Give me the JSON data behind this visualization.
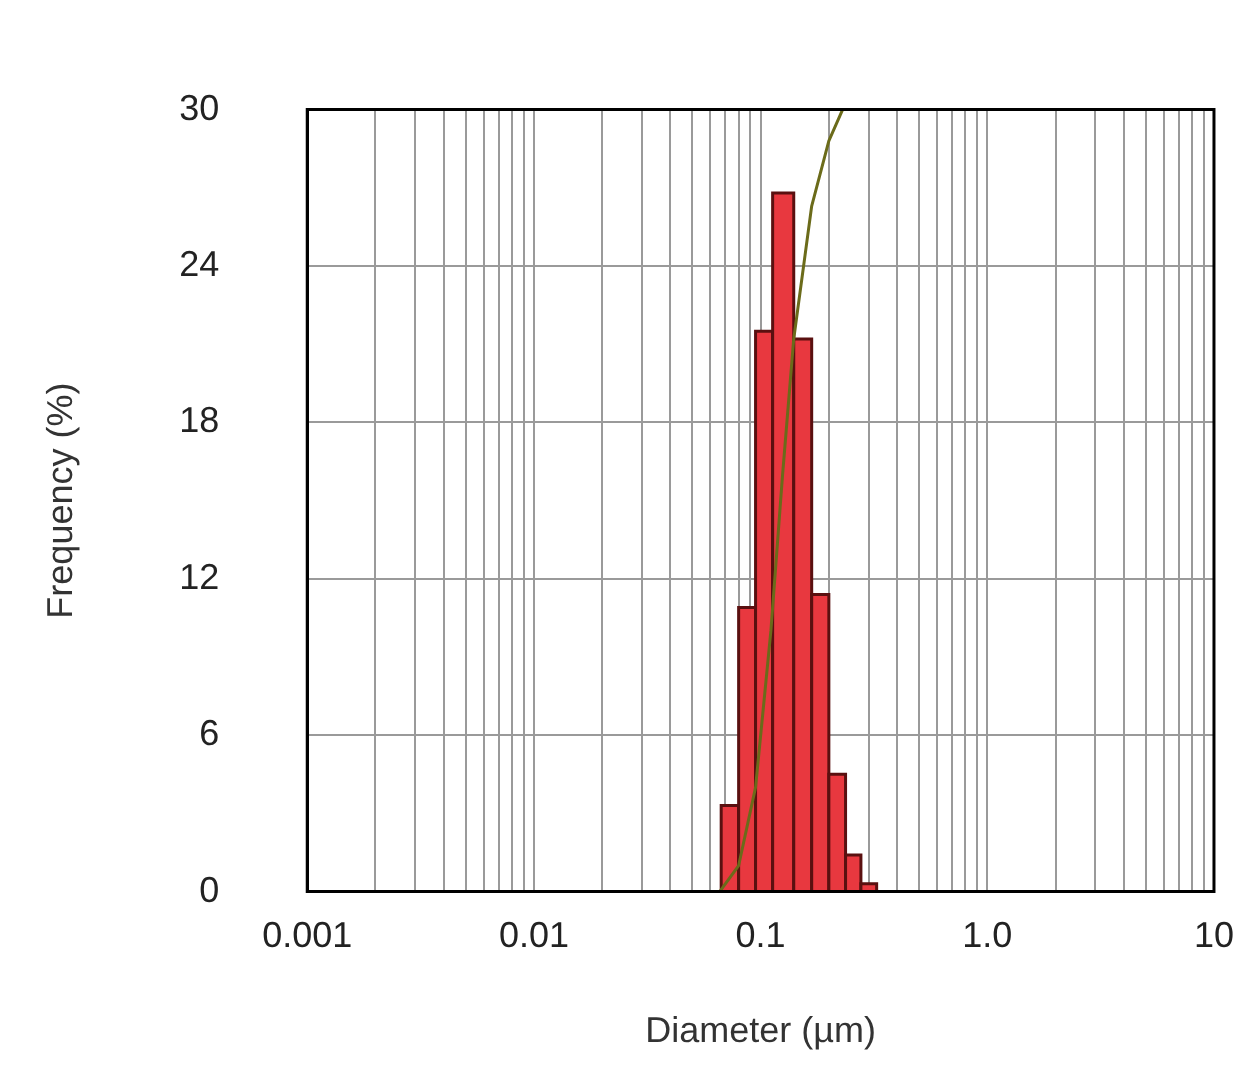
{
  "chart_data": {
    "type": "histogram",
    "xlabel": "Diameter (µm)",
    "ylabel": "Frequency (%)",
    "bins": [
      0.067,
      0.08,
      0.095,
      0.113,
      0.14,
      0.168,
      0.2,
      0.237,
      0.277,
      0.325
    ],
    "values": [
      3.3,
      10.9,
      21.5,
      26.8,
      21.2,
      11.4,
      4.5,
      1.4,
      0.3
    ],
    "color": "#e8383f",
    "series": [
      {
        "type": "line",
        "color": "#6b6b1a",
        "x": [
          0.066,
          0.08,
          0.095,
          0.111,
          0.125,
          0.14,
          0.168,
          0.2,
          0.23
        ],
        "values": [
          0,
          1,
          4,
          10,
          16,
          21.2,
          26.3,
          28.8,
          30
        ]
      }
    ],
    "log": "x",
    "xlim": [
      0.001,
      10
    ],
    "ylim": [
      0,
      30
    ],
    "xticks": [
      {
        "value": 0.001,
        "label": "0.001"
      },
      {
        "value": 0.002,
        "label": null
      },
      {
        "value": 0.003,
        "label": null
      },
      {
        "value": 0.004,
        "label": null
      },
      {
        "value": 0.005,
        "label": null
      },
      {
        "value": 0.006,
        "label": null
      },
      {
        "value": 0.007,
        "label": null
      },
      {
        "value": 0.008,
        "label": null
      },
      {
        "value": 0.009,
        "label": null
      },
      {
        "value": 0.01,
        "label": "0.01"
      },
      {
        "value": 0.02,
        "label": null
      },
      {
        "value": 0.03,
        "label": null
      },
      {
        "value": 0.04,
        "label": null
      },
      {
        "value": 0.05,
        "label": null
      },
      {
        "value": 0.06,
        "label": null
      },
      {
        "value": 0.07,
        "label": null
      },
      {
        "value": 0.08,
        "label": null
      },
      {
        "value": 0.09,
        "label": null
      },
      {
        "value": 0.1,
        "label": "0.1"
      },
      {
        "value": 0.2,
        "label": null
      },
      {
        "value": 0.3,
        "label": null
      },
      {
        "value": 0.4,
        "label": null
      },
      {
        "value": 0.5,
        "label": null
      },
      {
        "value": 0.6,
        "label": null
      },
      {
        "value": 0.7,
        "label": null
      },
      {
        "value": 0.8,
        "label": null
      },
      {
        "value": 0.9,
        "label": null
      },
      {
        "value": 1,
        "label": "1.0"
      },
      {
        "value": 2,
        "label": null
      },
      {
        "value": 3,
        "label": null
      },
      {
        "value": 4,
        "label": null
      },
      {
        "value": 5,
        "label": null
      },
      {
        "value": 6,
        "label": null
      },
      {
        "value": 7,
        "label": null
      },
      {
        "value": 8,
        "label": null
      },
      {
        "value": 9,
        "label": null
      },
      {
        "value": 10,
        "label": "10"
      }
    ],
    "yticks": [
      0,
      6,
      12,
      18,
      24,
      30
    ],
    "grid": true,
    "legend": false
  }
}
